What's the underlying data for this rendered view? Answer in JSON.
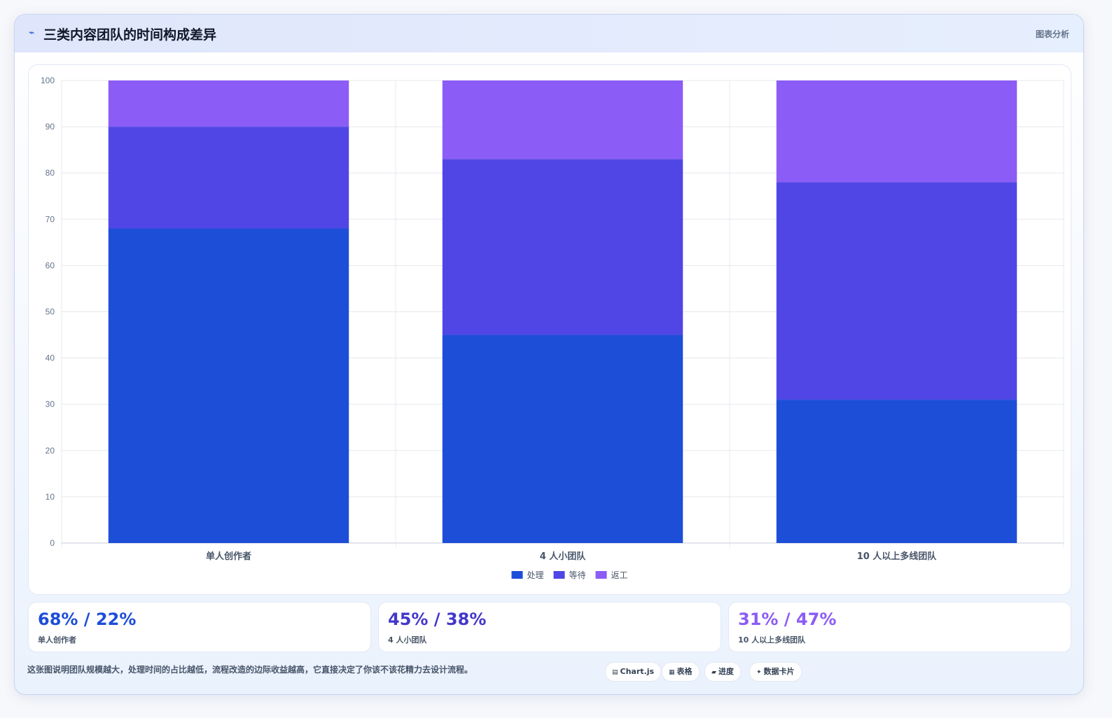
{
  "header": {
    "icon": "trend-icon",
    "title": "三类内容团队的时间构成差异",
    "tag": "图表分析"
  },
  "chart_data": {
    "type": "bar",
    "stacked": true,
    "title": "",
    "xlabel": "",
    "ylabel": "",
    "categories": [
      "单人创作者",
      "4 人小团队",
      "10 人以上多线团队"
    ],
    "series": [
      {
        "name": "处理",
        "values": [
          68,
          45,
          31
        ],
        "color": "#1d4ed8"
      },
      {
        "name": "等待",
        "values": [
          22,
          38,
          47
        ],
        "color": "#4f46e5"
      },
      {
        "name": "返工",
        "values": [
          10,
          17,
          22
        ],
        "color": "#8b5cf6"
      }
    ],
    "ylim": [
      0,
      100
    ],
    "yticks": [
      0,
      10,
      20,
      30,
      40,
      50,
      60,
      70,
      80,
      90,
      100
    ],
    "grid": true,
    "legend": "bottom"
  },
  "stats": [
    {
      "value": "68% / 22%",
      "label": "单人创作者",
      "color": "#1d4ed8"
    },
    {
      "value": "45% / 38%",
      "label": "4 人小团队",
      "color": "#4338ca"
    },
    {
      "value": "31% / 47%",
      "label": "10 人以上多线团队",
      "color": "#8b5cf6"
    }
  ],
  "caption": "这张图说明团队规模越大，处理时间的占比越低，流程改造的边际收益越高，它直接决定了你该不该花精力去设计流程。",
  "pills": [
    {
      "icon": "chart-icon",
      "label": "Chart.js"
    },
    {
      "icon": "table-icon",
      "label": "表格"
    },
    {
      "icon": "progress-icon",
      "label": "进度"
    },
    {
      "icon": "data-card-icon",
      "label": "数据卡片"
    }
  ]
}
